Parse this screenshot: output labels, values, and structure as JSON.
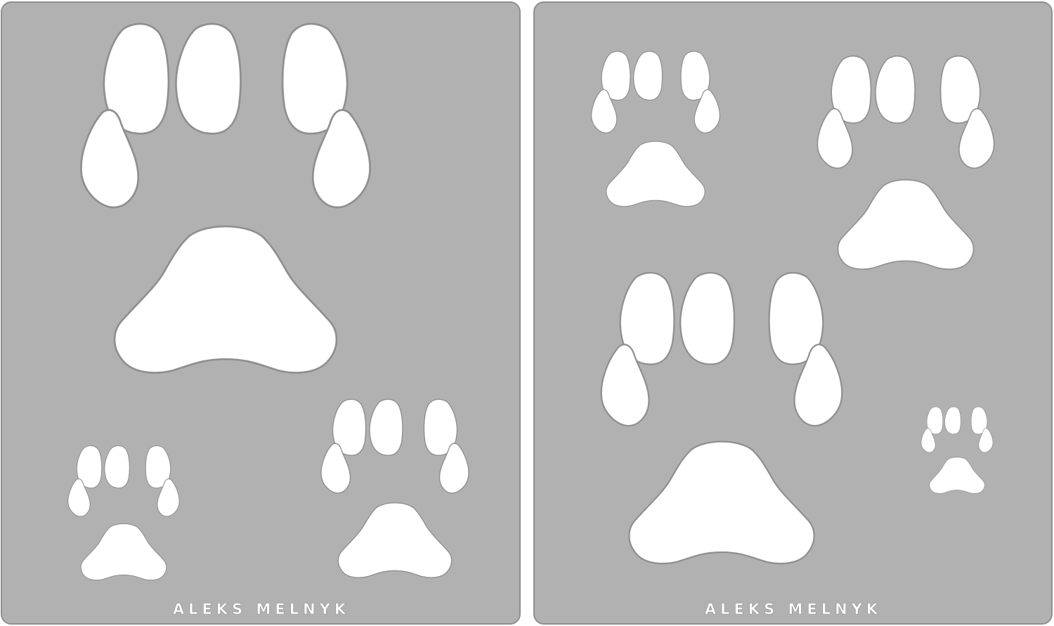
{
  "stencils": [
    {
      "brand": "ALEKS MELNYK",
      "sheet_color": "#b1b1b1"
    },
    {
      "brand": "ALEKS MELNYK",
      "sheet_color": "#b1b1b1"
    }
  ],
  "colors": {
    "cutout": "#ffffff",
    "edge": "#8f8f8f"
  }
}
